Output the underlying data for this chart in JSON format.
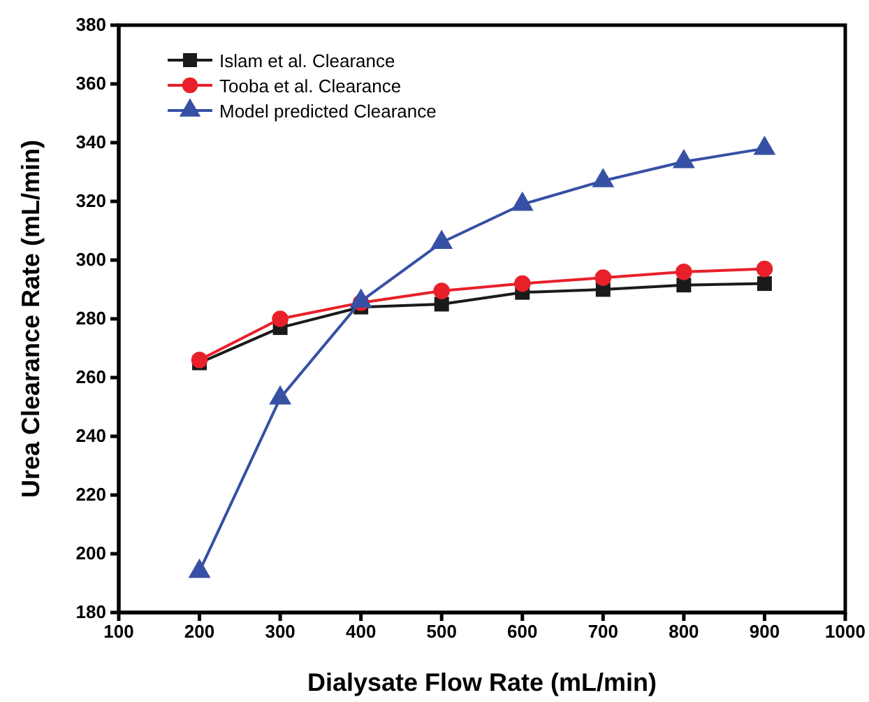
{
  "chart_data": {
    "type": "line",
    "xlabel": "Dialysate Flow Rate (mL/min)",
    "ylabel": "Urea Clearance Rate (mL/min)",
    "x": [
      200,
      300,
      400,
      500,
      600,
      700,
      800,
      900
    ],
    "series": [
      {
        "name": "Islam et al. Clearance",
        "color": "#1a1a1a",
        "marker": "square",
        "values": [
          265,
          277,
          284,
          285,
          289,
          290,
          291.5,
          292
        ]
      },
      {
        "name": "Tooba et al. Clearance",
        "color": "#e8202a",
        "marker": "circle",
        "values": [
          266,
          280,
          285.5,
          289.5,
          292,
          294,
          296,
          297
        ]
      },
      {
        "name": "Model predicted Clearance",
        "color": "#3650a4",
        "marker": "triangle",
        "values": [
          194,
          253,
          286,
          306,
          319,
          327,
          333.5,
          338
        ]
      }
    ],
    "xlim": [
      100,
      1000
    ],
    "xticks": [
      100,
      200,
      300,
      400,
      500,
      600,
      700,
      800,
      900,
      1000
    ],
    "ylim": [
      180,
      380
    ],
    "yticks": [
      180,
      200,
      220,
      240,
      260,
      280,
      300,
      320,
      340,
      360,
      380
    ],
    "grid": false,
    "legend": "top left"
  }
}
